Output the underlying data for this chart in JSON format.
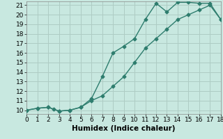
{
  "line1_x": [
    0,
    1,
    2,
    2.5,
    3,
    4,
    5,
    6,
    7,
    8,
    9,
    10,
    11,
    12,
    13,
    14,
    15,
    16,
    17,
    18
  ],
  "line1_y": [
    10,
    10.2,
    10.3,
    10.1,
    9.9,
    10.0,
    10.3,
    11.2,
    13.5,
    16.0,
    16.7,
    17.5,
    19.5,
    21.2,
    20.3,
    21.3,
    21.3,
    21.2,
    21.2,
    19.5
  ],
  "line2_x": [
    0,
    1,
    2,
    3,
    4,
    5,
    6,
    7,
    8,
    9,
    10,
    11,
    12,
    13,
    14,
    15,
    16,
    17,
    18
  ],
  "line2_y": [
    10,
    10.2,
    10.3,
    9.9,
    10.0,
    10.3,
    11.0,
    11.5,
    12.5,
    13.5,
    15.0,
    16.5,
    17.5,
    18.5,
    19.5,
    20.0,
    20.5,
    21.0,
    19.5
  ],
  "line_color": "#2e7d6e",
  "bg_color": "#c8e8e0",
  "grid_color": "#aeccc4",
  "xlabel": "Humidex (Indice chaleur)",
  "xlim": [
    0,
    18
  ],
  "ylim": [
    9.6,
    21.4
  ],
  "xticks": [
    0,
    1,
    2,
    3,
    4,
    5,
    6,
    7,
    8,
    9,
    10,
    11,
    12,
    13,
    14,
    15,
    16,
    17,
    18
  ],
  "yticks": [
    10,
    11,
    12,
    13,
    14,
    15,
    16,
    17,
    18,
    19,
    20,
    21
  ],
  "marker": "D",
  "markersize": 2.5,
  "linewidth": 1.0,
  "label_fontsize": 7.5,
  "tick_fontsize": 6.5
}
